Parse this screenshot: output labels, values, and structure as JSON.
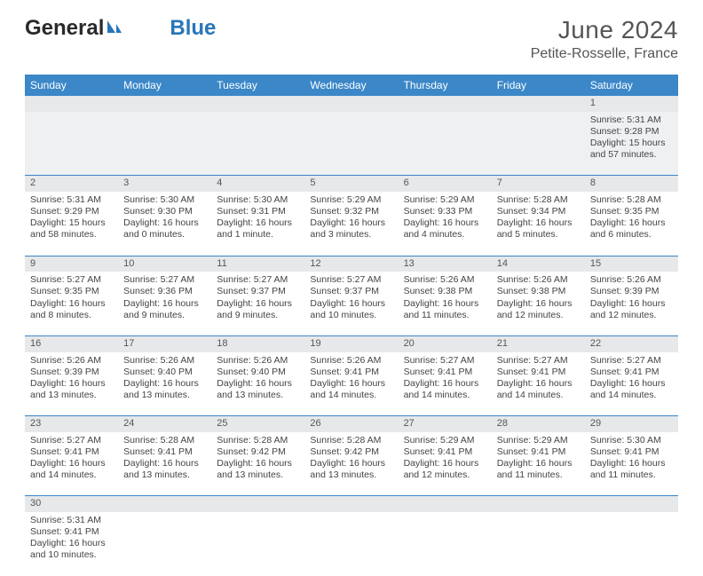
{
  "logo": {
    "part1": "General",
    "part2": "Blue"
  },
  "title": "June 2024",
  "location": "Petite-Rosselle, France",
  "day_headers": [
    "Sunday",
    "Monday",
    "Tuesday",
    "Wednesday",
    "Thursday",
    "Friday",
    "Saturday"
  ],
  "colors": {
    "header_bg": "#3b87c8",
    "header_fg": "#ffffff",
    "row_border": "#3b87c8",
    "numrow_bg": "#e6e8ea",
    "title_color": "#555555",
    "logo_accent": "#2776b8"
  },
  "weeks": [
    [
      null,
      null,
      null,
      null,
      null,
      null,
      {
        "n": "1",
        "sunrise": "Sunrise: 5:31 AM",
        "sunset": "Sunset: 9:28 PM",
        "daylight": "Daylight: 15 hours and 57 minutes."
      }
    ],
    [
      {
        "n": "2",
        "sunrise": "Sunrise: 5:31 AM",
        "sunset": "Sunset: 9:29 PM",
        "daylight": "Daylight: 15 hours and 58 minutes."
      },
      {
        "n": "3",
        "sunrise": "Sunrise: 5:30 AM",
        "sunset": "Sunset: 9:30 PM",
        "daylight": "Daylight: 16 hours and 0 minutes."
      },
      {
        "n": "4",
        "sunrise": "Sunrise: 5:30 AM",
        "sunset": "Sunset: 9:31 PM",
        "daylight": "Daylight: 16 hours and 1 minute."
      },
      {
        "n": "5",
        "sunrise": "Sunrise: 5:29 AM",
        "sunset": "Sunset: 9:32 PM",
        "daylight": "Daylight: 16 hours and 3 minutes."
      },
      {
        "n": "6",
        "sunrise": "Sunrise: 5:29 AM",
        "sunset": "Sunset: 9:33 PM",
        "daylight": "Daylight: 16 hours and 4 minutes."
      },
      {
        "n": "7",
        "sunrise": "Sunrise: 5:28 AM",
        "sunset": "Sunset: 9:34 PM",
        "daylight": "Daylight: 16 hours and 5 minutes."
      },
      {
        "n": "8",
        "sunrise": "Sunrise: 5:28 AM",
        "sunset": "Sunset: 9:35 PM",
        "daylight": "Daylight: 16 hours and 6 minutes."
      }
    ],
    [
      {
        "n": "9",
        "sunrise": "Sunrise: 5:27 AM",
        "sunset": "Sunset: 9:35 PM",
        "daylight": "Daylight: 16 hours and 8 minutes."
      },
      {
        "n": "10",
        "sunrise": "Sunrise: 5:27 AM",
        "sunset": "Sunset: 9:36 PM",
        "daylight": "Daylight: 16 hours and 9 minutes."
      },
      {
        "n": "11",
        "sunrise": "Sunrise: 5:27 AM",
        "sunset": "Sunset: 9:37 PM",
        "daylight": "Daylight: 16 hours and 9 minutes."
      },
      {
        "n": "12",
        "sunrise": "Sunrise: 5:27 AM",
        "sunset": "Sunset: 9:37 PM",
        "daylight": "Daylight: 16 hours and 10 minutes."
      },
      {
        "n": "13",
        "sunrise": "Sunrise: 5:26 AM",
        "sunset": "Sunset: 9:38 PM",
        "daylight": "Daylight: 16 hours and 11 minutes."
      },
      {
        "n": "14",
        "sunrise": "Sunrise: 5:26 AM",
        "sunset": "Sunset: 9:38 PM",
        "daylight": "Daylight: 16 hours and 12 minutes."
      },
      {
        "n": "15",
        "sunrise": "Sunrise: 5:26 AM",
        "sunset": "Sunset: 9:39 PM",
        "daylight": "Daylight: 16 hours and 12 minutes."
      }
    ],
    [
      {
        "n": "16",
        "sunrise": "Sunrise: 5:26 AM",
        "sunset": "Sunset: 9:39 PM",
        "daylight": "Daylight: 16 hours and 13 minutes."
      },
      {
        "n": "17",
        "sunrise": "Sunrise: 5:26 AM",
        "sunset": "Sunset: 9:40 PM",
        "daylight": "Daylight: 16 hours and 13 minutes."
      },
      {
        "n": "18",
        "sunrise": "Sunrise: 5:26 AM",
        "sunset": "Sunset: 9:40 PM",
        "daylight": "Daylight: 16 hours and 13 minutes."
      },
      {
        "n": "19",
        "sunrise": "Sunrise: 5:26 AM",
        "sunset": "Sunset: 9:41 PM",
        "daylight": "Daylight: 16 hours and 14 minutes."
      },
      {
        "n": "20",
        "sunrise": "Sunrise: 5:27 AM",
        "sunset": "Sunset: 9:41 PM",
        "daylight": "Daylight: 16 hours and 14 minutes."
      },
      {
        "n": "21",
        "sunrise": "Sunrise: 5:27 AM",
        "sunset": "Sunset: 9:41 PM",
        "daylight": "Daylight: 16 hours and 14 minutes."
      },
      {
        "n": "22",
        "sunrise": "Sunrise: 5:27 AM",
        "sunset": "Sunset: 9:41 PM",
        "daylight": "Daylight: 16 hours and 14 minutes."
      }
    ],
    [
      {
        "n": "23",
        "sunrise": "Sunrise: 5:27 AM",
        "sunset": "Sunset: 9:41 PM",
        "daylight": "Daylight: 16 hours and 14 minutes."
      },
      {
        "n": "24",
        "sunrise": "Sunrise: 5:28 AM",
        "sunset": "Sunset: 9:41 PM",
        "daylight": "Daylight: 16 hours and 13 minutes."
      },
      {
        "n": "25",
        "sunrise": "Sunrise: 5:28 AM",
        "sunset": "Sunset: 9:42 PM",
        "daylight": "Daylight: 16 hours and 13 minutes."
      },
      {
        "n": "26",
        "sunrise": "Sunrise: 5:28 AM",
        "sunset": "Sunset: 9:42 PM",
        "daylight": "Daylight: 16 hours and 13 minutes."
      },
      {
        "n": "27",
        "sunrise": "Sunrise: 5:29 AM",
        "sunset": "Sunset: 9:41 PM",
        "daylight": "Daylight: 16 hours and 12 minutes."
      },
      {
        "n": "28",
        "sunrise": "Sunrise: 5:29 AM",
        "sunset": "Sunset: 9:41 PM",
        "daylight": "Daylight: 16 hours and 11 minutes."
      },
      {
        "n": "29",
        "sunrise": "Sunrise: 5:30 AM",
        "sunset": "Sunset: 9:41 PM",
        "daylight": "Daylight: 16 hours and 11 minutes."
      }
    ],
    [
      {
        "n": "30",
        "sunrise": "Sunrise: 5:31 AM",
        "sunset": "Sunset: 9:41 PM",
        "daylight": "Daylight: 16 hours and 10 minutes."
      },
      null,
      null,
      null,
      null,
      null,
      null
    ]
  ]
}
